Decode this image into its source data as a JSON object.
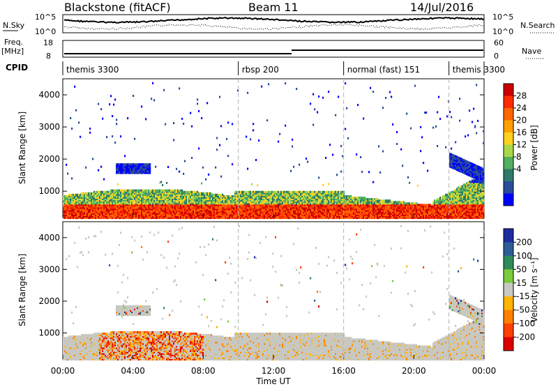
{
  "header": {
    "station": "Blackstone (fitACF)",
    "beam": "Beam 11",
    "date": "14/Jul/2016"
  },
  "panels": {
    "nsky": {
      "label": "N.Sky",
      "ticks": [
        "10^5",
        "10^0"
      ],
      "right_label": "N.Search",
      "right_ticks": [
        "10^5",
        "10^0"
      ]
    },
    "freq": {
      "label": "Freq.",
      "unit": "[MHz]",
      "ticks": [
        "18",
        "8"
      ],
      "right_label": "Nave",
      "right_ticks": [
        "60",
        "0"
      ]
    },
    "cpid": {
      "label": "CPID"
    }
  },
  "chart_data": [
    {
      "type": "line",
      "name": "cpid",
      "segments": [
        {
          "label": "themis 3300",
          "start": "00:00",
          "end": "10:00"
        },
        {
          "label": "rbsp 200",
          "start": "10:00",
          "end": "16:00"
        },
        {
          "label": "normal (fast) 151",
          "start": "16:00",
          "end": "22:00"
        },
        {
          "label": "themis 3300",
          "start": "22:00",
          "end": "24:00"
        }
      ],
      "boundaries": [
        "10:00",
        "16:00",
        "22:00"
      ]
    },
    {
      "type": "heatmap",
      "name": "power",
      "ylabel": "Slant Range [km]",
      "yticks": [
        "1000",
        "2000",
        "3000",
        "4000"
      ],
      "ylim": [
        180,
        4500
      ],
      "colorbar": {
        "label": "Power [dB]",
        "ticks": [
          "28",
          "24",
          "20",
          "16",
          "12",
          "8",
          "4"
        ],
        "colors": [
          "#cc0000",
          "#ff2a00",
          "#ff6600",
          "#ffa000",
          "#ffd21e",
          "#a8d84a",
          "#50b060",
          "#2e7a6a",
          "#2a4c9a",
          "#0000ff"
        ]
      }
    },
    {
      "type": "heatmap",
      "name": "velocity",
      "ylabel": "Slant Range [km]",
      "yticks": [
        "1000",
        "2000",
        "3000",
        "4000"
      ],
      "ylim": [
        180,
        4500
      ],
      "xlabel": "Time UT",
      "xticks": [
        "00:00",
        "04:00",
        "08:00",
        "12:00",
        "16:00",
        "20:00",
        "00:00"
      ],
      "colorbar": {
        "label": "Velocity [m s⁻¹]",
        "ticks": [
          "200",
          "100",
          "50",
          "15",
          "-15",
          "-50",
          "-100",
          "-200"
        ],
        "colors": [
          "#1e2aa0",
          "#2d5c96",
          "#2f8a5a",
          "#79cc3c",
          "#c8c8c0",
          "#ffb400",
          "#ff8000",
          "#ff4000",
          "#dd0000"
        ]
      }
    }
  ],
  "colors": {
    "ground": "#c0c0bc",
    "boundary": "#b0b0b0"
  }
}
